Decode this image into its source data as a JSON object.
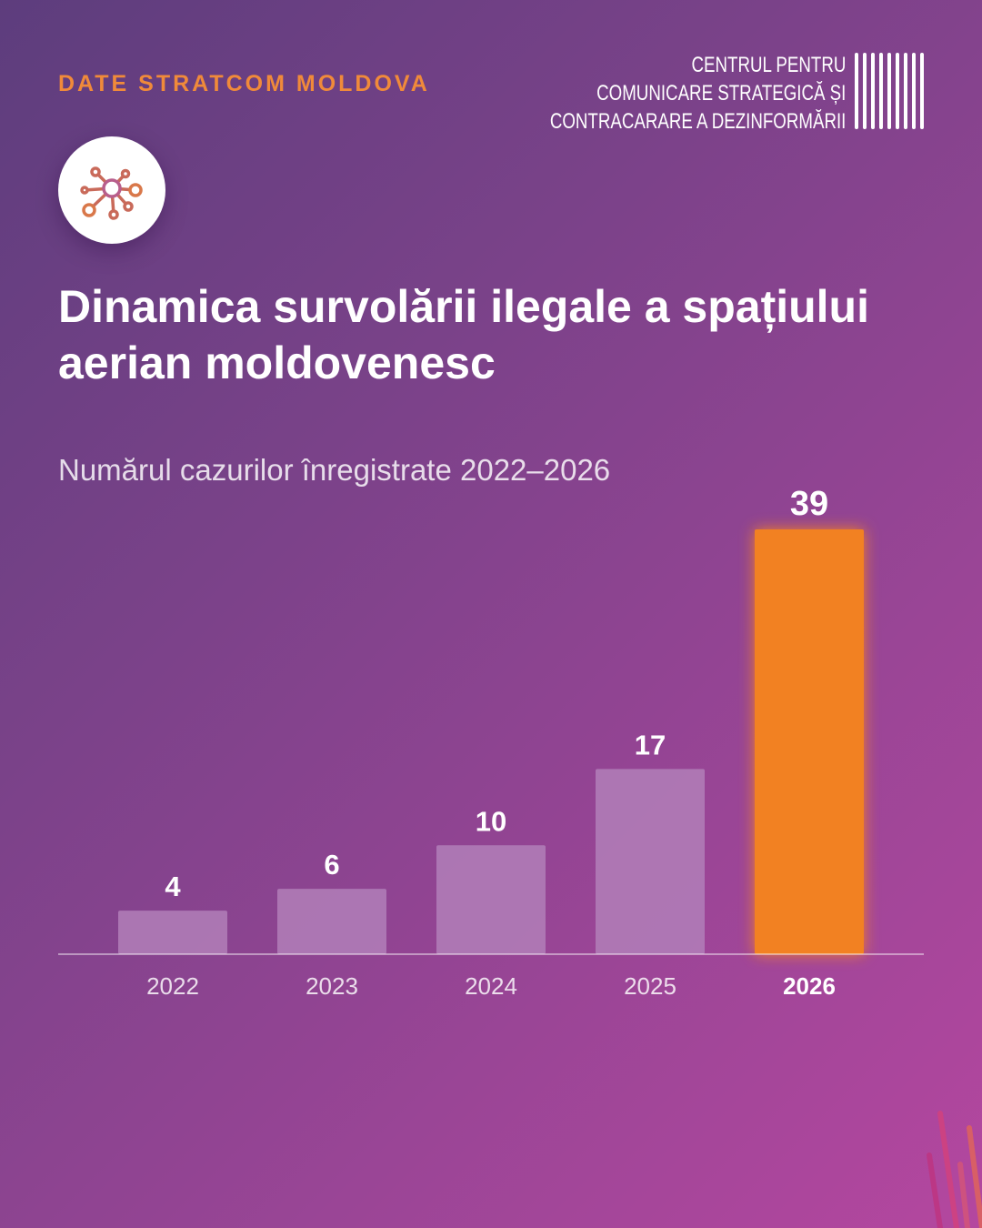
{
  "header": {
    "kicker": "DATE STRATCOM MOLDOVA",
    "org_lines": [
      "CENTRUL PENTRU",
      "COMUNICARE STRATEGICĂ ȘI",
      "CONTRACARARE A DEZINFORMĂRII"
    ]
  },
  "icon": "network-nodes-icon",
  "colors": {
    "accent": "#f08a3a",
    "bar_highlight": "#f28124",
    "bar_normal": "#b27fb8"
  },
  "chart_data": {
    "type": "bar",
    "title": "Dinamica survolării ilegale a spațiului aerian moldovenesc",
    "subtitle": "Numărul cazurilor înregistrate 2022–2026",
    "categories": [
      "2022",
      "2023",
      "2024",
      "2025",
      "2026"
    ],
    "values": [
      4,
      6,
      10,
      17,
      39
    ],
    "highlight": "2026",
    "data_labels": true,
    "grid": false,
    "ylim": [
      0,
      39
    ]
  }
}
